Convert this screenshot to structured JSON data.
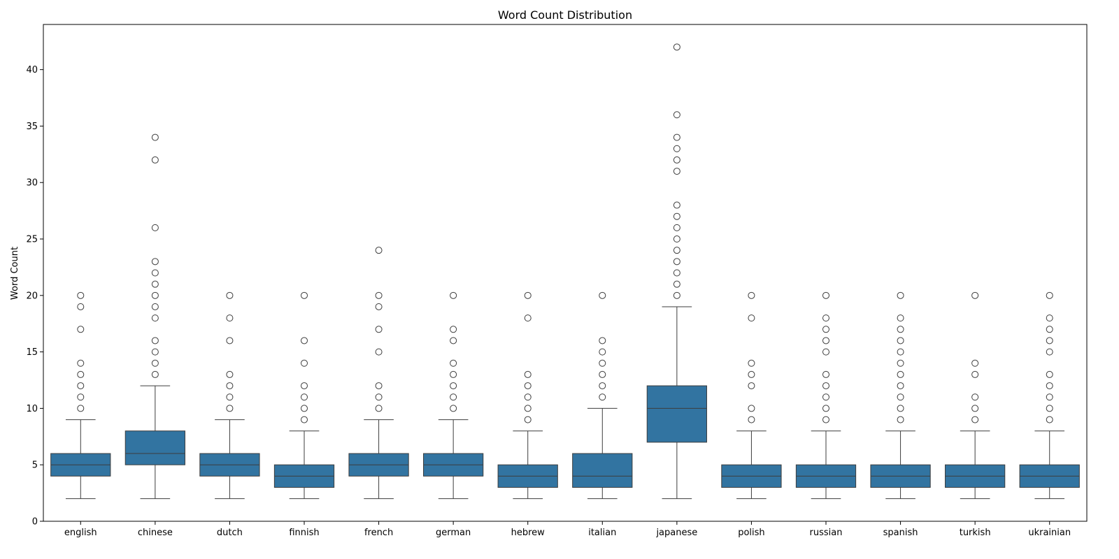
{
  "chart_data": {
    "type": "box",
    "title": "Word Count Distribution",
    "xlabel": "",
    "ylabel": "Word Count",
    "ylim": [
      0,
      44
    ],
    "yticks": [
      0,
      5,
      10,
      15,
      20,
      25,
      30,
      35,
      40
    ],
    "grid": false,
    "legend": "none",
    "box_color": "#3274a1",
    "line_color": "#3d3d3d",
    "categories": [
      "english",
      "chinese",
      "dutch",
      "finnish",
      "french",
      "german",
      "hebrew",
      "italian",
      "japanese",
      "polish",
      "russian",
      "spanish",
      "turkish",
      "ukrainian"
    ],
    "boxes": [
      {
        "category": "english",
        "whisker_low": 2,
        "q1": 4,
        "median": 5,
        "q3": 6,
        "whisker_high": 9,
        "outliers": [
          10,
          11,
          12,
          13,
          14,
          17,
          19,
          20
        ]
      },
      {
        "category": "chinese",
        "whisker_low": 2,
        "q1": 5,
        "median": 6,
        "q3": 8,
        "whisker_high": 12,
        "outliers": [
          13,
          14,
          15,
          16,
          18,
          19,
          20,
          21,
          22,
          23,
          26,
          32,
          34
        ]
      },
      {
        "category": "dutch",
        "whisker_low": 2,
        "q1": 4,
        "median": 5,
        "q3": 6,
        "whisker_high": 9,
        "outliers": [
          10,
          11,
          12,
          13,
          16,
          18,
          20
        ]
      },
      {
        "category": "finnish",
        "whisker_low": 2,
        "q1": 3,
        "median": 4,
        "q3": 5,
        "whisker_high": 8,
        "outliers": [
          9,
          10,
          11,
          12,
          14,
          16,
          20
        ]
      },
      {
        "category": "french",
        "whisker_low": 2,
        "q1": 4,
        "median": 5,
        "q3": 6,
        "whisker_high": 9,
        "outliers": [
          10,
          11,
          12,
          15,
          17,
          19,
          20,
          24
        ]
      },
      {
        "category": "german",
        "whisker_low": 2,
        "q1": 4,
        "median": 5,
        "q3": 6,
        "whisker_high": 9,
        "outliers": [
          10,
          11,
          12,
          13,
          14,
          16,
          17,
          20
        ]
      },
      {
        "category": "hebrew",
        "whisker_low": 2,
        "q1": 3,
        "median": 4,
        "q3": 5,
        "whisker_high": 8,
        "outliers": [
          9,
          10,
          11,
          12,
          13,
          18,
          20
        ]
      },
      {
        "category": "italian",
        "whisker_low": 2,
        "q1": 3,
        "median": 4,
        "q3": 6,
        "whisker_high": 10,
        "outliers": [
          11,
          12,
          13,
          14,
          15,
          16,
          20
        ]
      },
      {
        "category": "japanese",
        "whisker_low": 2,
        "q1": 7,
        "median": 10,
        "q3": 12,
        "whisker_high": 19,
        "outliers": [
          20,
          21,
          22,
          23,
          24,
          25,
          26,
          27,
          28,
          31,
          32,
          33,
          34,
          36,
          42
        ]
      },
      {
        "category": "polish",
        "whisker_low": 2,
        "q1": 3,
        "median": 4,
        "q3": 5,
        "whisker_high": 8,
        "outliers": [
          9,
          10,
          12,
          13,
          14,
          18,
          20
        ]
      },
      {
        "category": "russian",
        "whisker_low": 2,
        "q1": 3,
        "median": 4,
        "q3": 5,
        "whisker_high": 8,
        "outliers": [
          9,
          10,
          11,
          12,
          13,
          15,
          16,
          17,
          18,
          20
        ]
      },
      {
        "category": "spanish",
        "whisker_low": 2,
        "q1": 3,
        "median": 4,
        "q3": 5,
        "whisker_high": 8,
        "outliers": [
          9,
          10,
          11,
          12,
          13,
          14,
          15,
          16,
          17,
          18,
          20
        ]
      },
      {
        "category": "turkish",
        "whisker_low": 2,
        "q1": 3,
        "median": 4,
        "q3": 5,
        "whisker_high": 8,
        "outliers": [
          9,
          10,
          11,
          13,
          14,
          20
        ]
      },
      {
        "category": "ukrainian",
        "whisker_low": 2,
        "q1": 3,
        "median": 4,
        "q3": 5,
        "whisker_high": 8,
        "outliers": [
          9,
          10,
          11,
          12,
          13,
          15,
          16,
          17,
          18,
          20
        ]
      }
    ]
  }
}
